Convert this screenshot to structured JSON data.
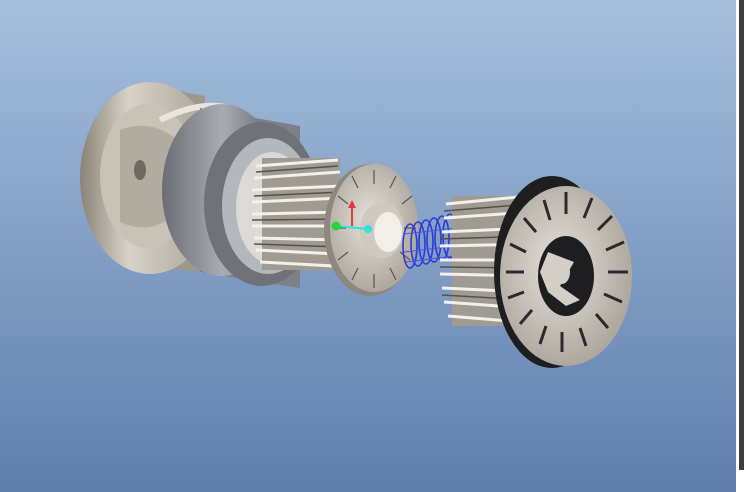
{
  "viewport": {
    "background_top": "#a6bfdc",
    "background_bottom": "#5f7eae"
  },
  "model": {
    "parts": [
      "housing-icon",
      "outer-sleeve-icon",
      "left-heatsink-gear-icon",
      "thrust-washer-icon",
      "coil-spring-icon",
      "right-heatsink-gear-icon",
      "slotted-end-disc-icon"
    ],
    "colors": {
      "housing": "#bdb6ab",
      "sleeve": "#8f9298",
      "disc": "#d4cec6",
      "spring": "#2b3bd6",
      "dark": "#222222"
    }
  },
  "triad": {
    "colors": {
      "x_axis": "#33e0e0",
      "y_axis": "#e03a3a",
      "origin": "#27d43a"
    }
  }
}
